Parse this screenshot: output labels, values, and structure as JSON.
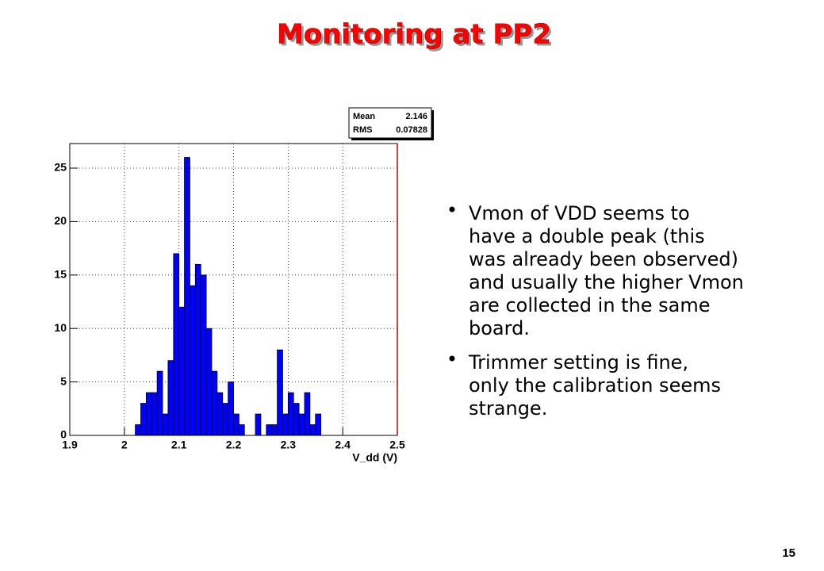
{
  "title": "Monitoring at PP2",
  "bullets": [
    {
      "lines": [
        "Vmon of VDD seems to",
        "have a double peak (this",
        "was already been observed)",
        "and usually the higher Vmon",
        "are collected in the same",
        "board."
      ]
    },
    {
      "lines": [
        "Trimmer setting is fine,",
        "only the calibration seems",
        "strange."
      ]
    }
  ],
  "page_number": "15",
  "chart_data": {
    "type": "histogram",
    "x_label": "V_dd (V)",
    "bins": [
      1.9,
      1.91,
      1.92,
      1.93,
      1.94,
      1.95,
      1.96,
      1.97,
      1.98,
      1.99,
      2.0,
      2.01,
      2.02,
      2.03,
      2.04,
      2.05,
      2.06,
      2.07,
      2.08,
      2.09,
      2.1,
      2.11,
      2.12,
      2.13,
      2.14,
      2.15,
      2.16,
      2.17,
      2.18,
      2.19,
      2.2,
      2.21,
      2.22,
      2.23,
      2.24,
      2.25,
      2.26,
      2.27,
      2.28,
      2.29,
      2.3,
      2.31,
      2.32,
      2.33,
      2.34,
      2.35,
      2.36,
      2.37,
      2.38,
      2.39,
      2.4,
      2.41,
      2.42,
      2.43,
      2.44,
      2.45,
      2.46,
      2.47,
      2.48,
      2.49,
      2.5
    ],
    "values": [
      0,
      0,
      0,
      0,
      0,
      0,
      0,
      0,
      0,
      0,
      0,
      0,
      1,
      3,
      4,
      4,
      6,
      2,
      7,
      17,
      12,
      26,
      14,
      16,
      15,
      10,
      6,
      4,
      3,
      5,
      2,
      1,
      0,
      0,
      2,
      0,
      1,
      1,
      8,
      2,
      4,
      3,
      2,
      4,
      1,
      2,
      0,
      0,
      0,
      0,
      0,
      0,
      0,
      0,
      0,
      0,
      0,
      0,
      0,
      0
    ],
    "color": "#0000ff",
    "xlim": [
      1.9,
      2.5
    ],
    "ylim": [
      0,
      27.3
    ],
    "xticks": [
      1.9,
      2,
      2.1,
      2.2,
      2.3,
      2.4,
      2.5
    ],
    "yticks": [
      0,
      5,
      10,
      15,
      20,
      25
    ],
    "grid": true,
    "stats": [
      {
        "name": "Mean",
        "value": 2.146
      },
      {
        "name": "RMS",
        "value": 0.07828
      }
    ]
  }
}
